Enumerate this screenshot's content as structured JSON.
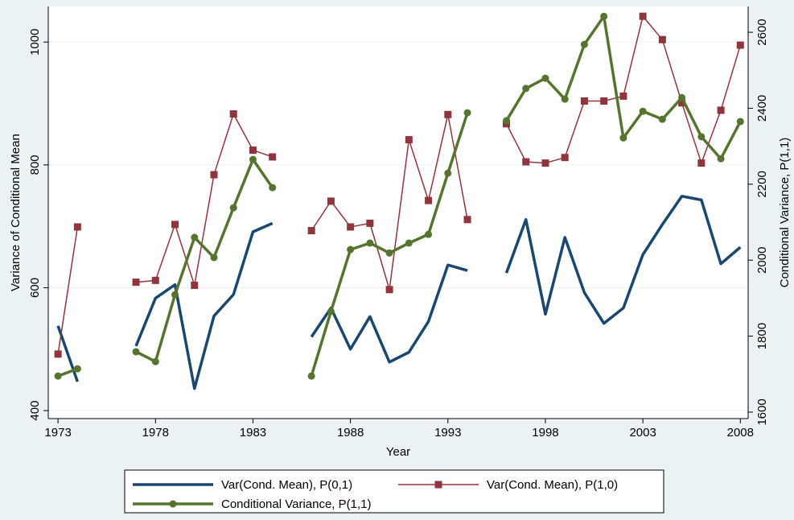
{
  "chart_data": {
    "type": "line",
    "x_label": "Year",
    "y_label": "Variance of Conditional Mean",
    "y2_label": "Conditional Variance, P(1,1)",
    "x": [
      1973,
      1974,
      1975,
      1976,
      1977,
      1978,
      1979,
      1980,
      1981,
      1982,
      1983,
      1984,
      1985,
      1986,
      1987,
      1988,
      1989,
      1990,
      1991,
      1992,
      1993,
      1994,
      1995,
      1996,
      1997,
      1998,
      1999,
      2000,
      2001,
      2002,
      2003,
      2004,
      2005,
      2006,
      2007,
      2008
    ],
    "series": [
      {
        "name": "Var(Cond. Mean), P(0,1)",
        "color": "#1a476f",
        "marker": "none",
        "width": 3.5,
        "axis": "y",
        "values": [
          538,
          447,
          null,
          null,
          505,
          583,
          605,
          436,
          554,
          589,
          691,
          705,
          null,
          520,
          567,
          500,
          553,
          479,
          495,
          545,
          637,
          628,
          null,
          624,
          711,
          557,
          682,
          592,
          542,
          567,
          654,
          703,
          749,
          743,
          639,
          666
        ]
      },
      {
        "name": "Var(Cond. Mean), P(1,0)",
        "color": "#90353b",
        "marker": "square",
        "width": 1.5,
        "axis": "y",
        "values": [
          492,
          699,
          null,
          null,
          609,
          612,
          703,
          604,
          784,
          883,
          824,
          813,
          null,
          693,
          741,
          699,
          705,
          597,
          841,
          742,
          882,
          711,
          null,
          867,
          805,
          803,
          812,
          904,
          904,
          912,
          1042,
          1004,
          901,
          803,
          889,
          995
        ]
      },
      {
        "name": "Conditional Variance, P(1,1)",
        "color": "#55752f",
        "marker": "circle",
        "width": 3.5,
        "axis": "y2",
        "values": [
          1695,
          1714,
          null,
          null,
          1759,
          1733,
          1909,
          2060,
          2007,
          2138,
          2265,
          2191,
          null,
          1695,
          1865,
          2028,
          2045,
          2019,
          2045,
          2068,
          2229,
          2388,
          null,
          2367,
          2452,
          2479,
          2424,
          2568,
          2642,
          2322,
          2392,
          2371,
          2428,
          2325,
          2267,
          2365
        ]
      }
    ],
    "xlim": [
      1972.5,
      2008.4
    ],
    "xticks": [
      1973,
      1978,
      1983,
      1988,
      1993,
      1998,
      2003,
      2008
    ],
    "ylim": [
      387,
      1058
    ],
    "yticks": [
      400,
      600,
      800,
      1000
    ],
    "y2lim": [
      1583,
      2668
    ],
    "y2ticks": [
      1600,
      1800,
      2000,
      2200,
      2400,
      2600
    ],
    "grid": true,
    "legend": "bottom"
  }
}
